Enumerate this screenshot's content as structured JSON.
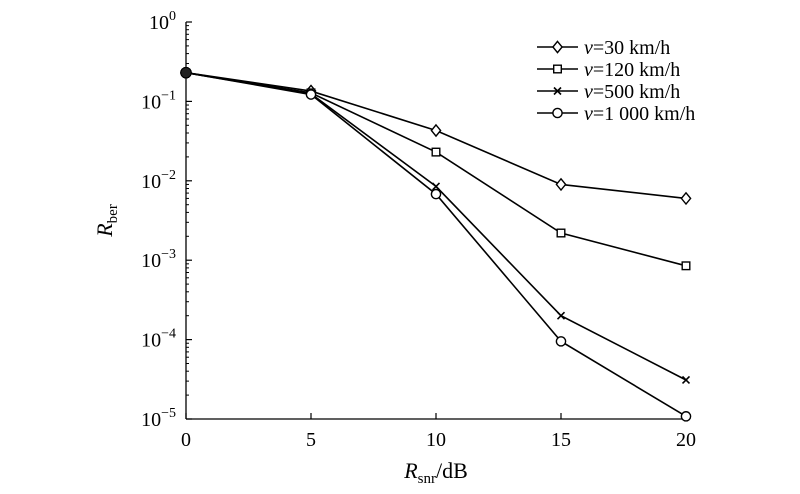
{
  "chart_data": {
    "type": "line",
    "title": "",
    "xlabel": {
      "main": "R",
      "sub": "snr",
      "suffix": "/dB"
    },
    "ylabel": {
      "main": "R",
      "sub": "ber"
    },
    "x": [
      0,
      5,
      10,
      15,
      20
    ],
    "xlim": [
      0,
      20
    ],
    "ylim_exponents": [
      -5,
      0
    ],
    "y_scale": "log10",
    "x_ticks": [
      0,
      5,
      10,
      15,
      20
    ],
    "y_ticks": [
      {
        "base": "10",
        "exp": "0",
        "value": 1
      },
      {
        "base": "10",
        "exp": "−1",
        "value": 0.1
      },
      {
        "base": "10",
        "exp": "−2",
        "value": 0.01
      },
      {
        "base": "10",
        "exp": "−3",
        "value": 0.001
      },
      {
        "base": "10",
        "exp": "−4",
        "value": 0.0001
      },
      {
        "base": "10",
        "exp": "−5",
        "value": 1e-05
      }
    ],
    "grid": false,
    "legend_position": "top-right",
    "series": [
      {
        "name": "v=30 km/h",
        "name_var": "v",
        "name_rest": "=30 km/h",
        "marker": "diamond",
        "values": [
          0.23,
          0.135,
          0.043,
          0.009,
          0.006
        ]
      },
      {
        "name": "v=120 km/h",
        "name_var": "v",
        "name_rest": "=120 km/h",
        "marker": "square",
        "values": [
          0.23,
          0.128,
          0.023,
          0.0022,
          0.00085
        ]
      },
      {
        "name": "v=500 km/h",
        "name_var": "v",
        "name_rest": "=500 km/h",
        "marker": "x",
        "values": [
          0.23,
          0.125,
          0.0085,
          0.0002,
          3.1e-05
        ]
      },
      {
        "name": "v=1 000 km/h",
        "name_var": "v",
        "name_rest": "=1 000 km/h",
        "marker": "circle",
        "values": [
          0.23,
          0.122,
          0.0068,
          9.5e-05,
          1.08e-05
        ]
      }
    ]
  }
}
